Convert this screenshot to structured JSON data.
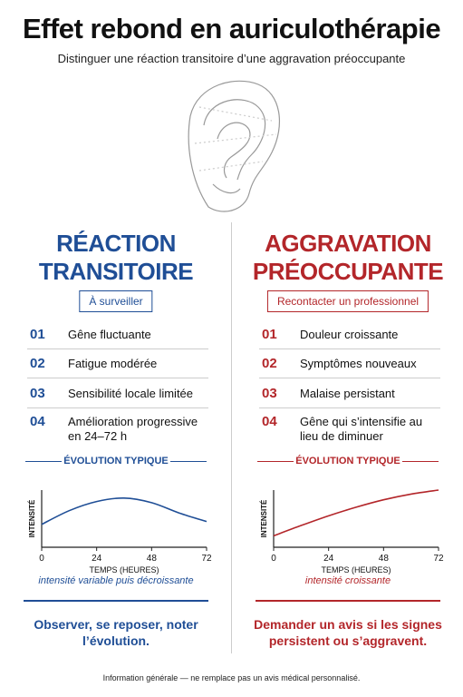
{
  "header": {
    "title": "Effet rebond en auriculothérapie",
    "subtitle": "Distinguer une réaction transitoire d’une aggravation préoccupante"
  },
  "panels": [
    {
      "title": "RÉACTION TRANSITOIRE",
      "badge": "À surveiller",
      "color": "#1f4e96",
      "items": [
        {
          "number": "01",
          "text": "Gêne fluctuante"
        },
        {
          "number": "02",
          "text": "Fatigue modérée"
        },
        {
          "number": "03",
          "text": "Sensibilité locale limitée"
        },
        {
          "number": "04",
          "text": "Amélioration progressive en 24–72 h"
        }
      ],
      "section": "ÉVOLUTION TYPIQUE",
      "chart": {
        "type": "line",
        "x": [
          0,
          12,
          24,
          36,
          48,
          60,
          72
        ],
        "values": [
          4,
          6.4,
          8,
          8.6,
          7.8,
          6,
          4.5
        ],
        "xlim": [
          0,
          72
        ],
        "xticks": [
          0,
          24,
          48,
          72
        ],
        "ylim": [
          0,
          10
        ],
        "xlabel": "TEMPS (HEURES)",
        "ylabel": "INTENSITÉ",
        "color": "#1f4e96"
      },
      "caption": "intensité variable puis décroissante",
      "conclusion": "Observer, se reposer, noter l’évolution."
    },
    {
      "title": "AGGRAVATION PRÉOCCUPANTE",
      "badge": "Recontacter un professionnel",
      "color": "#b3262a",
      "items": [
        {
          "number": "01",
          "text": "Douleur croissante"
        },
        {
          "number": "02",
          "text": "Symptômes nouveaux"
        },
        {
          "number": "03",
          "text": "Malaise persistant"
        },
        {
          "number": "04",
          "text": "Gêne qui s’intensifie au lieu de diminuer"
        }
      ],
      "section": "ÉVOLUTION TYPIQUE",
      "chart": {
        "type": "line",
        "x": [
          0,
          12,
          24,
          36,
          48,
          60,
          72
        ],
        "values": [
          2,
          3.8,
          5.5,
          7,
          8.3,
          9.3,
          10
        ],
        "xlim": [
          0,
          72
        ],
        "xticks": [
          0,
          24,
          48,
          72
        ],
        "ylim": [
          0,
          10
        ],
        "xlabel": "TEMPS (HEURES)",
        "ylabel": "INTENSITÉ",
        "color": "#b3262a"
      },
      "caption": "intensité croissante",
      "conclusion": "Demander un avis si les signes persistent ou s’aggravent."
    }
  ],
  "footer": "Information générale — ne remplace pas un avis médical personnalisé."
}
